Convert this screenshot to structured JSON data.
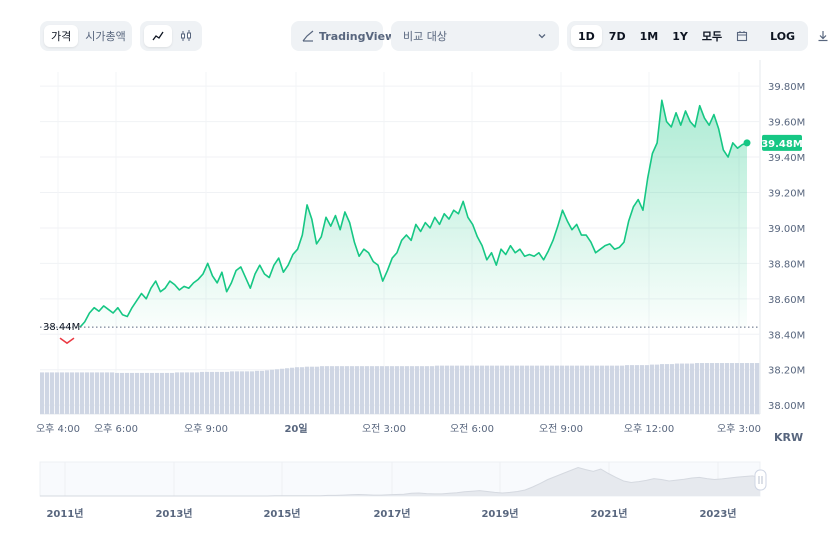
{
  "toolbar": {
    "tab_price": "가격",
    "tab_market_cap": "시가총액",
    "line_chart_icon": "line-chart-icon",
    "candle_chart_icon": "candlestick-icon",
    "tradingview_label": "TradingView",
    "compare_placeholder": "비교 대상",
    "ranges": [
      "1D",
      "7D",
      "1M",
      "1Y",
      "모두"
    ],
    "active_range": "1D",
    "log_label": "LOG",
    "calendar_icon": "calendar-icon",
    "download_icon": "download-icon"
  },
  "colors": {
    "line": "#16c784",
    "down": "#ea3943",
    "label_bg": "#16c784",
    "volume": "#cfd6e4"
  },
  "chart_data": {
    "type": "area",
    "currency_label": "KRW",
    "y_ticks": [
      "39.80M",
      "39.60M",
      "39.40M",
      "39.20M",
      "39.00M",
      "38.80M",
      "38.60M",
      "38.40M",
      "38.20M",
      "38.00M"
    ],
    "ylim": [
      37.95,
      39.88
    ],
    "x_ticks": [
      "오후 4:00",
      "오후 6:00",
      "오후 9:00",
      "20일",
      "오전 3:00",
      "오전 6:00",
      "오전 9:00",
      "오후 12:00",
      "오후 3:00"
    ],
    "open_price_label": "38.44M",
    "open_price": 38.44,
    "last_price_label": "39.48M",
    "last_price": 39.48,
    "series": [
      {
        "values": [
          38.44,
          38.47,
          38.52,
          38.55,
          38.53,
          38.56,
          38.54,
          38.52,
          38.55,
          38.51,
          38.5,
          38.55,
          38.59,
          38.63,
          38.6,
          38.66,
          38.7,
          38.64,
          38.66,
          38.7,
          38.68,
          38.65,
          38.67,
          38.66,
          38.69,
          38.71,
          38.74,
          38.8,
          38.73,
          38.69,
          38.75,
          38.64,
          38.69,
          38.76,
          38.78,
          38.72,
          38.66,
          38.74,
          38.79,
          38.74,
          38.72,
          38.79,
          38.83,
          38.75,
          38.79,
          38.85,
          38.88,
          38.96,
          39.13,
          39.05,
          38.91,
          38.95,
          39.06,
          39.01,
          39.07,
          38.99,
          39.09,
          39.03,
          38.92,
          38.84,
          38.88,
          38.86,
          38.81,
          38.79,
          38.7,
          38.76,
          38.83,
          38.86,
          38.93,
          38.96,
          38.93,
          39.02,
          38.98,
          39.03,
          39.0,
          39.06,
          39.02,
          39.08,
          39.05,
          39.1,
          39.08,
          39.15,
          39.06,
          39.02,
          38.95,
          38.9,
          38.82,
          38.86,
          38.79,
          38.88,
          38.85,
          38.9,
          38.86,
          38.88,
          38.84,
          38.85,
          38.84,
          38.86,
          38.82,
          38.87,
          38.93,
          39.01,
          39.1,
          39.04,
          38.99,
          39.02,
          38.96,
          38.96,
          38.92,
          38.86,
          38.88,
          38.9,
          38.91,
          38.88,
          38.89,
          38.92,
          39.04,
          39.12,
          39.16,
          39.1,
          39.28,
          39.42,
          39.48,
          39.72,
          39.6,
          39.57,
          39.65,
          39.58,
          39.66,
          39.6,
          39.57,
          39.69,
          39.62,
          39.58,
          39.64,
          39.56,
          39.44,
          39.4,
          39.48,
          39.45,
          39.47,
          39.48
        ]
      }
    ],
    "volume": [
      0.8,
      0.8,
      0.8,
      0.8,
      0.8,
      0.8,
      0.8,
      0.8,
      0.8,
      0.8,
      0.8,
      0.8,
      0.8,
      0.8,
      0.8,
      0.79,
      0.79,
      0.79,
      0.79,
      0.79,
      0.79,
      0.79,
      0.79,
      0.79,
      0.79,
      0.79,
      0.79,
      0.8,
      0.8,
      0.8,
      0.8,
      0.8,
      0.81,
      0.81,
      0.81,
      0.81,
      0.81,
      0.81,
      0.82,
      0.82,
      0.82,
      0.82,
      0.82,
      0.83,
      0.83,
      0.84,
      0.85,
      0.86,
      0.87,
      0.88,
      0.89,
      0.9,
      0.9,
      0.91,
      0.91,
      0.91,
      0.92,
      0.92,
      0.92,
      0.92,
      0.92,
      0.92,
      0.92,
      0.92,
      0.92,
      0.92,
      0.92,
      0.92,
      0.92,
      0.92,
      0.92,
      0.92,
      0.92,
      0.92,
      0.92,
      0.92,
      0.92,
      0.92,
      0.92,
      0.93,
      0.93,
      0.93,
      0.93,
      0.93,
      0.93,
      0.93,
      0.93,
      0.93,
      0.93,
      0.93,
      0.93,
      0.93,
      0.93,
      0.93,
      0.93,
      0.93,
      0.93,
      0.93,
      0.93,
      0.93,
      0.93,
      0.93,
      0.93,
      0.93,
      0.93,
      0.93,
      0.93,
      0.93,
      0.93,
      0.93,
      0.93,
      0.93,
      0.93,
      0.93,
      0.93,
      0.93,
      0.93,
      0.94,
      0.94,
      0.94,
      0.94,
      0.94,
      0.95,
      0.95,
      0.96,
      0.96,
      0.96,
      0.97,
      0.97,
      0.97,
      0.97,
      0.98,
      0.98,
      0.98,
      0.98,
      0.98,
      0.98,
      0.98,
      0.98,
      0.98,
      0.98,
      0.98,
      0.98,
      0.98
    ]
  },
  "navigator": {
    "years": [
      "2011년",
      "2013년",
      "2015년",
      "2017년",
      "2019년",
      "2021년",
      "2023년"
    ],
    "history": [
      0,
      0,
      0,
      0,
      0,
      0,
      0,
      0,
      0,
      0,
      0,
      0,
      0,
      0,
      0,
      0,
      0,
      0,
      0,
      0,
      0,
      0,
      0,
      0,
      0,
      0,
      0,
      0,
      0,
      0,
      0,
      0.01,
      0.01,
      0.01,
      0.01,
      0.01,
      0.01,
      0.01,
      0.02,
      0.02,
      0.03,
      0.04,
      0.05,
      0.04,
      0.03,
      0.03,
      0.04,
      0.05,
      0.06,
      0.09,
      0.1,
      0.08,
      0.07,
      0.07,
      0.09,
      0.11,
      0.14,
      0.16,
      0.18,
      0.15,
      0.12,
      0.1,
      0.12,
      0.15,
      0.2,
      0.3,
      0.42,
      0.55,
      0.65,
      0.75,
      0.85,
      0.95,
      0.88,
      0.82,
      0.9,
      0.75,
      0.62,
      0.5,
      0.45,
      0.48,
      0.52,
      0.58,
      0.55,
      0.5,
      0.53,
      0.56,
      0.6,
      0.62,
      0.58,
      0.55,
      0.57,
      0.6,
      0.63,
      0.65,
      0.67,
      0.62
    ]
  }
}
